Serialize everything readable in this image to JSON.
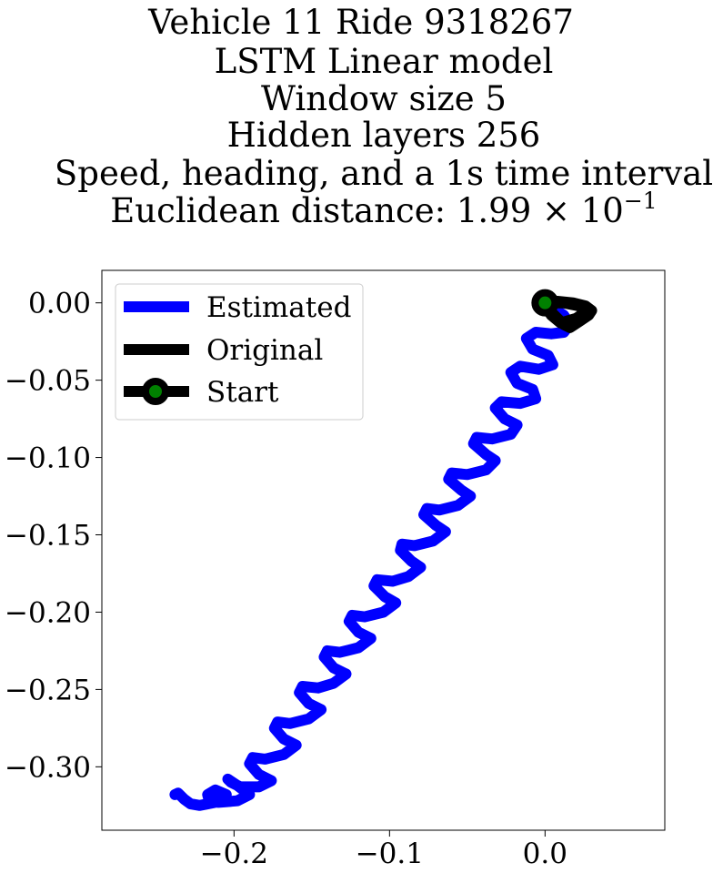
{
  "colors": {
    "estimated": "#0000ff",
    "original": "#000000",
    "start_marker_fill": "#008000",
    "start_marker_edge": "#000000",
    "axes": "#000000",
    "background": "#ffffff"
  },
  "chart_data": {
    "type": "line",
    "title_lines": [
      "Vehicle 11 Ride 9318267",
      "LSTM Linear model",
      "Window size 5",
      "Hidden layers 256",
      "Speed, heading, and a 1s time interval",
      "Euclidean distance: 1.99 × 10"
    ],
    "title_exponent": "−1",
    "xlim": [
      -0.285,
      0.077
    ],
    "ylim": [
      -0.341,
      0.021
    ],
    "x_ticks": [
      {
        "value": -0.2,
        "label": "−0.2"
      },
      {
        "value": -0.1,
        "label": "−0.1"
      },
      {
        "value": 0.0,
        "label": "0.0"
      }
    ],
    "y_ticks": [
      {
        "value": 0.0,
        "label": "0.00"
      },
      {
        "value": -0.05,
        "label": "−0.05"
      },
      {
        "value": -0.1,
        "label": "−0.10"
      },
      {
        "value": -0.15,
        "label": "−0.15"
      },
      {
        "value": -0.2,
        "label": "−0.20"
      },
      {
        "value": -0.25,
        "label": "−0.25"
      },
      {
        "value": -0.3,
        "label": "−0.30"
      }
    ],
    "grid": false,
    "legend": {
      "placement": "top-left",
      "entries": [
        "Estimated",
        "Original",
        "Start"
      ]
    },
    "series": [
      {
        "name": "Estimated",
        "x": [
          0.0,
          0.006,
          0.012,
          0.016,
          0.012,
          0.004,
          -0.006,
          -0.012,
          -0.008,
          0.002,
          0.005,
          -0.004,
          -0.016,
          -0.022,
          -0.018,
          -0.008,
          -0.006,
          -0.016,
          -0.028,
          -0.032,
          -0.026,
          -0.018,
          -0.022,
          -0.034,
          -0.044,
          -0.046,
          -0.038,
          -0.032,
          -0.038,
          -0.05,
          -0.06,
          -0.062,
          -0.054,
          -0.048,
          -0.056,
          -0.068,
          -0.076,
          -0.078,
          -0.07,
          -0.064,
          -0.072,
          -0.084,
          -0.092,
          -0.093,
          -0.086,
          -0.08,
          -0.088,
          -0.098,
          -0.108,
          -0.11,
          -0.103,
          -0.096,
          -0.104,
          -0.116,
          -0.124,
          -0.126,
          -0.12,
          -0.112,
          -0.12,
          -0.132,
          -0.14,
          -0.142,
          -0.136,
          -0.128,
          -0.136,
          -0.146,
          -0.156,
          -0.158,
          -0.152,
          -0.144,
          -0.152,
          -0.164,
          -0.172,
          -0.174,
          -0.168,
          -0.16,
          -0.168,
          -0.18,
          -0.188,
          -0.19,
          -0.184,
          -0.176,
          -0.184,
          -0.196,
          -0.202,
          -0.204,
          -0.198,
          -0.19,
          -0.198,
          -0.21,
          -0.216,
          -0.217,
          -0.212,
          -0.205,
          -0.212,
          -0.222,
          -0.228,
          -0.232,
          -0.236,
          -0.238
        ],
        "y": [
          0.0,
          -0.004,
          -0.008,
          -0.014,
          -0.019,
          -0.02,
          -0.019,
          -0.023,
          -0.03,
          -0.034,
          -0.04,
          -0.043,
          -0.041,
          -0.045,
          -0.052,
          -0.056,
          -0.062,
          -0.065,
          -0.064,
          -0.068,
          -0.075,
          -0.079,
          -0.085,
          -0.088,
          -0.087,
          -0.091,
          -0.098,
          -0.102,
          -0.108,
          -0.111,
          -0.11,
          -0.114,
          -0.121,
          -0.125,
          -0.131,
          -0.134,
          -0.133,
          -0.137,
          -0.144,
          -0.148,
          -0.154,
          -0.157,
          -0.156,
          -0.16,
          -0.167,
          -0.171,
          -0.177,
          -0.18,
          -0.179,
          -0.183,
          -0.19,
          -0.194,
          -0.2,
          -0.203,
          -0.202,
          -0.206,
          -0.213,
          -0.217,
          -0.223,
          -0.226,
          -0.225,
          -0.229,
          -0.236,
          -0.24,
          -0.246,
          -0.249,
          -0.248,
          -0.252,
          -0.259,
          -0.263,
          -0.269,
          -0.272,
          -0.271,
          -0.275,
          -0.282,
          -0.286,
          -0.292,
          -0.295,
          -0.294,
          -0.298,
          -0.305,
          -0.309,
          -0.313,
          -0.313,
          -0.31,
          -0.308,
          -0.312,
          -0.318,
          -0.322,
          -0.323,
          -0.322,
          -0.318,
          -0.315,
          -0.318,
          -0.323,
          -0.325,
          -0.324,
          -0.321,
          -0.317,
          -0.318
        ]
      },
      {
        "name": "Original",
        "x": [
          0.0,
          0.008,
          0.018,
          0.026,
          0.03,
          0.028,
          0.022,
          0.016,
          0.012,
          0.008,
          0.004,
          0.0,
          0.004,
          0.012,
          0.022,
          0.026,
          0.02,
          0.01,
          0.004,
          0.0
        ],
        "y": [
          0.0,
          0.001,
          0.0,
          -0.002,
          -0.005,
          -0.008,
          -0.012,
          -0.016,
          -0.014,
          -0.01,
          -0.006,
          -0.002,
          0.0,
          0.0,
          -0.002,
          -0.006,
          -0.01,
          -0.013,
          -0.008,
          -0.002
        ]
      }
    ],
    "start_point": {
      "x": 0.0,
      "y": 0.0
    }
  }
}
